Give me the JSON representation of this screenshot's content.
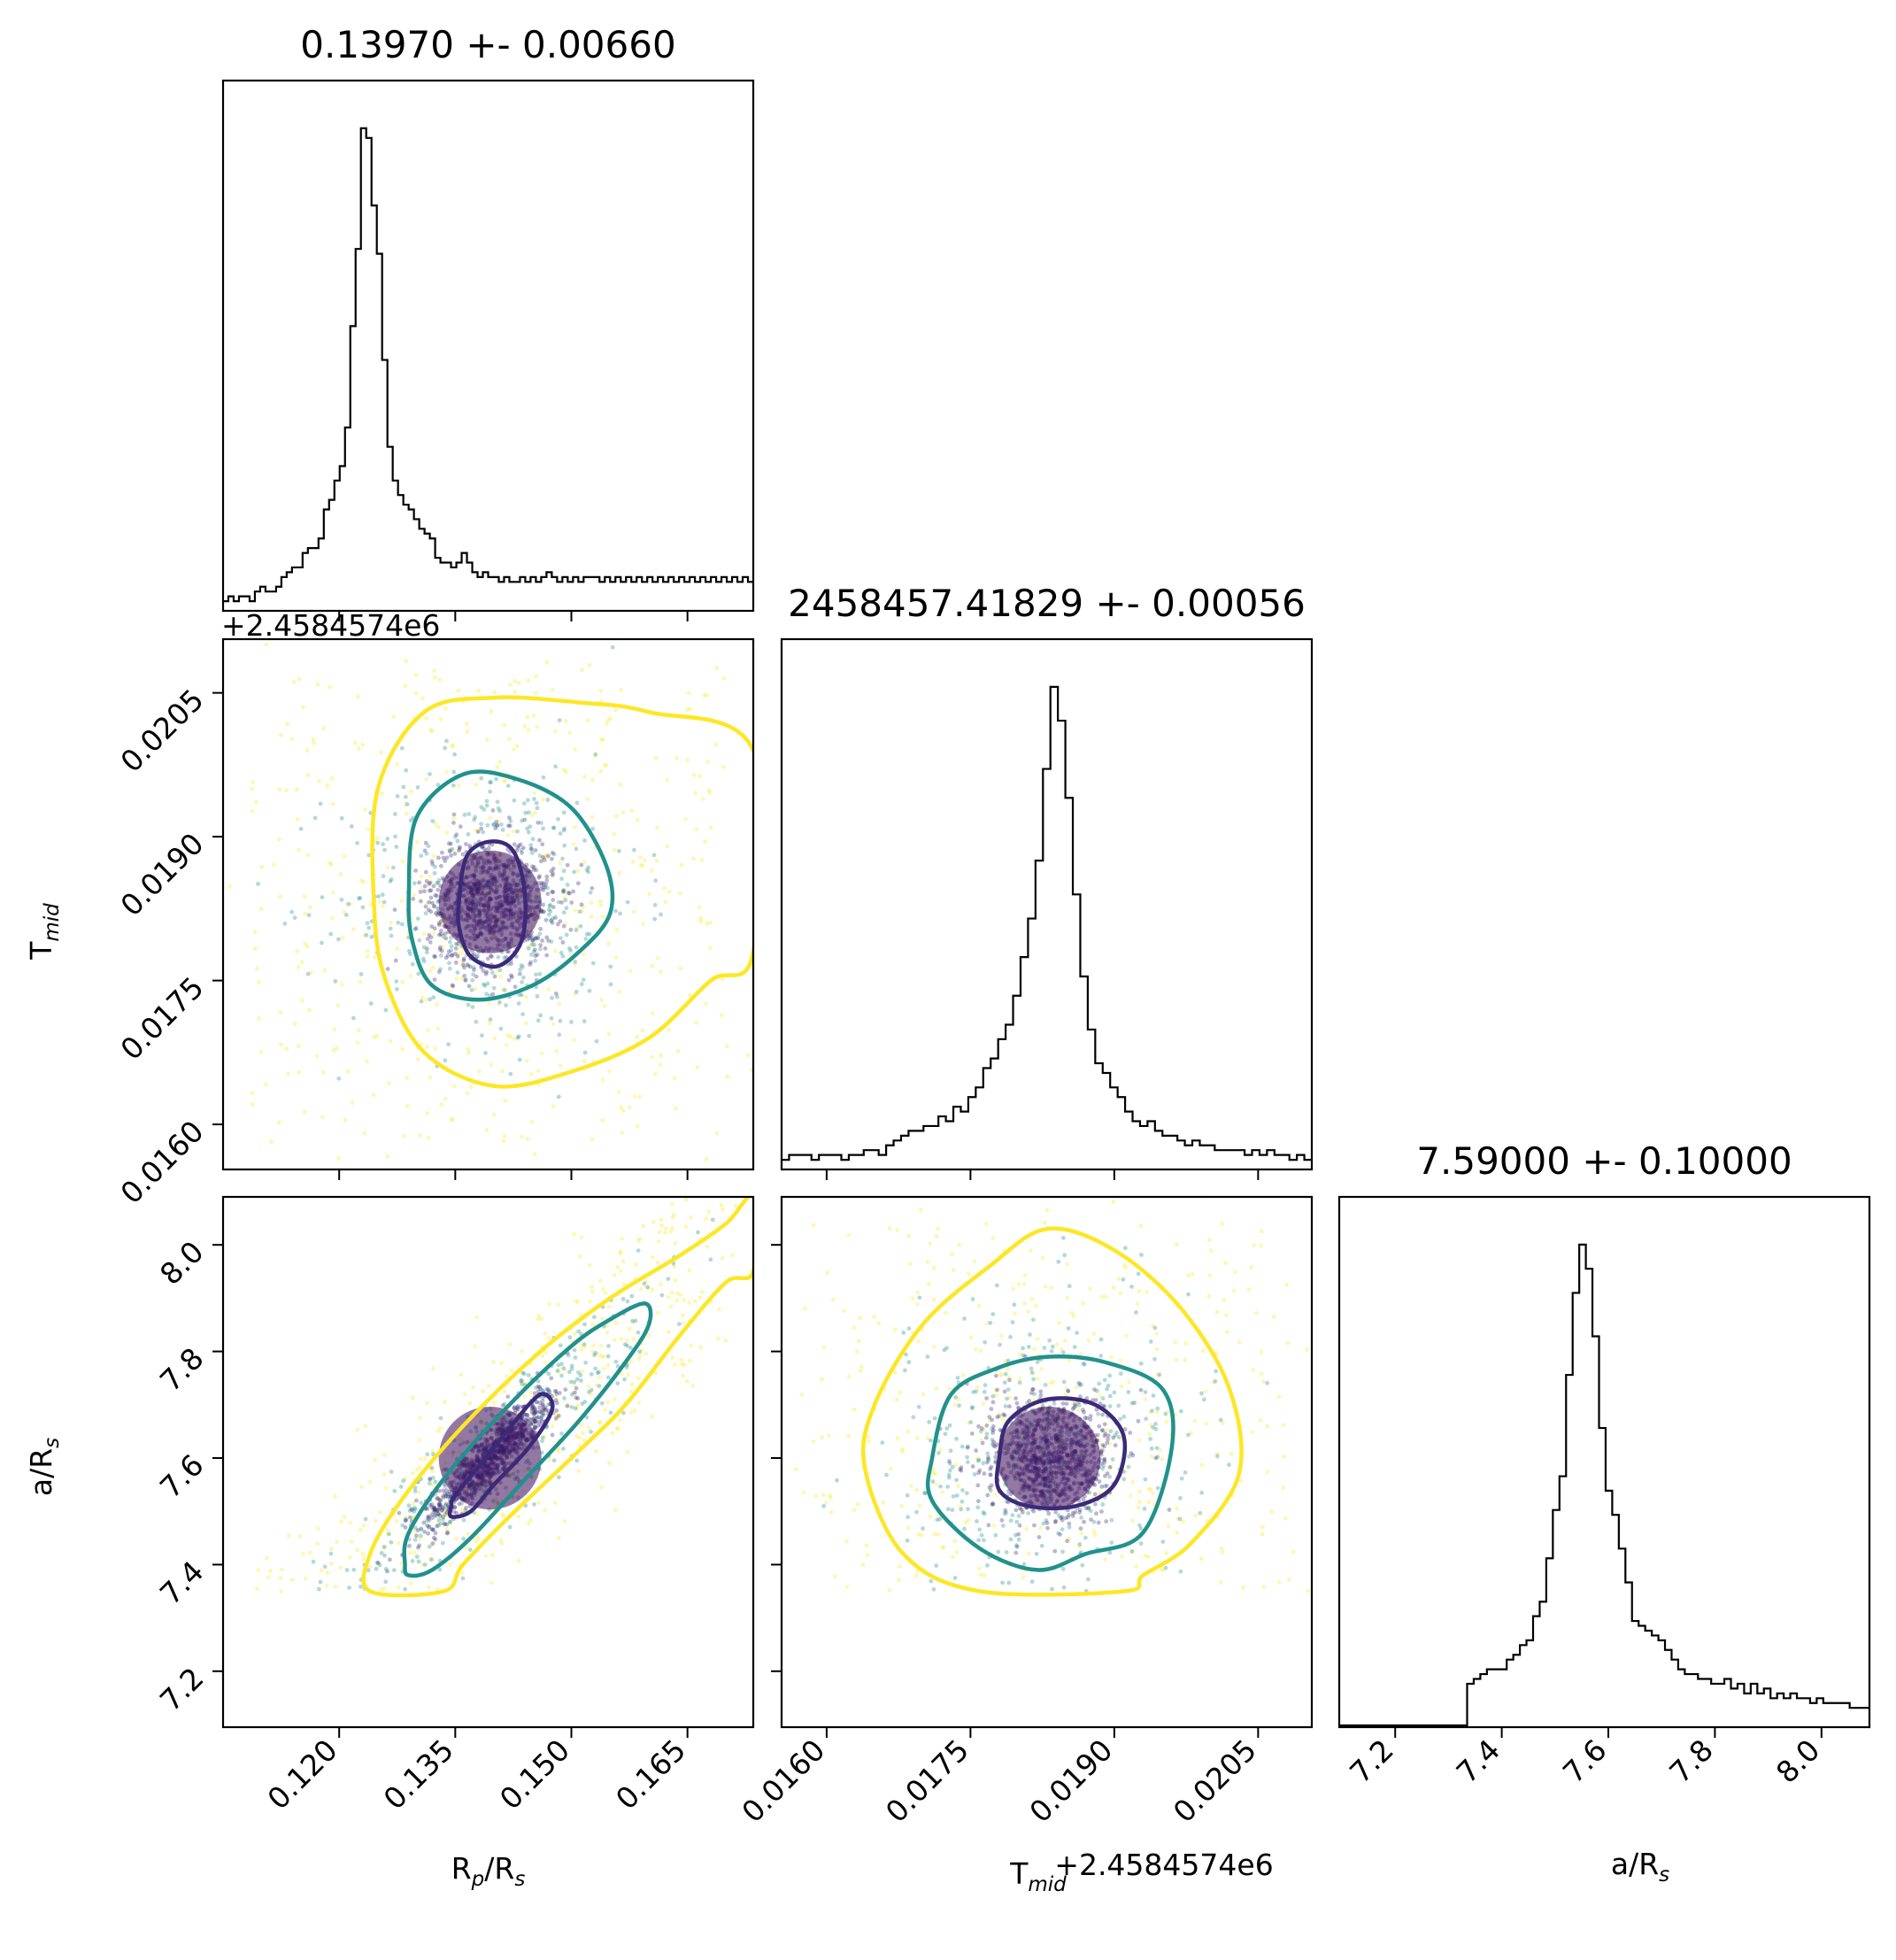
{
  "chart_data": {
    "type": "corner",
    "parameters": [
      {
        "id": "rp",
        "label_main": "R",
        "label_sub": "p",
        "label_tail": "/R",
        "label_tail_sub": "s",
        "title": "0.13970 +- 0.00660",
        "range": [
          0.105,
          0.1735
        ],
        "ticks": [
          0.12,
          0.135,
          0.15,
          0.165
        ],
        "tick_labels": [
          "0.120",
          "0.135",
          "0.150",
          "0.165"
        ],
        "offset_text": "",
        "hist": {
          "bin_width": 0.00137,
          "heights": [
            0.02,
            0.03,
            0.02,
            0.03,
            0.03,
            0.02,
            0.04,
            0.05,
            0.04,
            0.04,
            0.05,
            0.07,
            0.08,
            0.09,
            0.09,
            0.12,
            0.13,
            0.13,
            0.15,
            0.21,
            0.23,
            0.27,
            0.3,
            0.38,
            0.59,
            0.75,
            1.0,
            0.98,
            0.84,
            0.74,
            0.52,
            0.34,
            0.27,
            0.24,
            0.22,
            0.21,
            0.19,
            0.17,
            0.16,
            0.15,
            0.11,
            0.1,
            0.1,
            0.09,
            0.1,
            0.12,
            0.1,
            0.08,
            0.07,
            0.08,
            0.07,
            0.07,
            0.06,
            0.07,
            0.06,
            0.06,
            0.07,
            0.06,
            0.07,
            0.06,
            0.07,
            0.08,
            0.07,
            0.06,
            0.07,
            0.06,
            0.07,
            0.06,
            0.07,
            0.07,
            0.07,
            0.06,
            0.07,
            0.06,
            0.07,
            0.06,
            0.07,
            0.06,
            0.07,
            0.06,
            0.07,
            0.06,
            0.07,
            0.06,
            0.07,
            0.06,
            0.07,
            0.06,
            0.07,
            0.06,
            0.07,
            0.06,
            0.07,
            0.06,
            0.07,
            0.06,
            0.07,
            0.06,
            0.07,
            0.06
          ]
        }
      },
      {
        "id": "tmid",
        "label_main": "T",
        "label_sub": "mid",
        "title": "2458457.41829 +- 0.00056",
        "range": [
          0.01553,
          0.02106
        ],
        "ticks": [
          0.016,
          0.0175,
          0.019,
          0.0205
        ],
        "tick_labels": [
          "0.0160",
          "0.0175",
          "0.0190",
          "0.0205"
        ],
        "offset_text": "+2.4584574e6",
        "hist": {
          "heights": [
            0.02,
            0.03,
            0.03,
            0.03,
            0.02,
            0.03,
            0.03,
            0.03,
            0.02,
            0.03,
            0.03,
            0.04,
            0.04,
            0.03,
            0.05,
            0.06,
            0.07,
            0.08,
            0.08,
            0.09,
            0.09,
            0.11,
            0.1,
            0.13,
            0.12,
            0.15,
            0.17,
            0.21,
            0.23,
            0.27,
            0.3,
            0.36,
            0.44,
            0.52,
            0.64,
            0.83,
            1.0,
            0.93,
            0.77,
            0.57,
            0.4,
            0.29,
            0.22,
            0.2,
            0.17,
            0.15,
            0.12,
            0.1,
            0.09,
            0.1,
            0.08,
            0.07,
            0.07,
            0.06,
            0.05,
            0.06,
            0.05,
            0.05,
            0.04,
            0.04,
            0.04,
            0.04,
            0.03,
            0.04,
            0.03,
            0.04,
            0.03,
            0.03,
            0.02,
            0.03,
            0.02
          ]
        }
      },
      {
        "id": "ars",
        "label_main": "a/R",
        "label_sub": "s",
        "title": "7.59000 +- 0.10000",
        "range": [
          7.095,
          8.09
        ],
        "ticks": [
          7.2,
          7.4,
          7.6,
          7.8,
          8.0
        ],
        "tick_labels": [
          "7.2",
          "7.4",
          "7.6",
          "7.8",
          "8.0"
        ],
        "offset_text": "",
        "hist": {
          "start": 7.335,
          "heights": [
            0.09,
            0.1,
            0.11,
            0.12,
            0.12,
            0.12,
            0.14,
            0.15,
            0.17,
            0.18,
            0.23,
            0.26,
            0.35,
            0.45,
            0.52,
            0.73,
            0.9,
            1.0,
            0.95,
            0.81,
            0.62,
            0.49,
            0.44,
            0.37,
            0.3,
            0.22,
            0.21,
            0.2,
            0.19,
            0.18,
            0.16,
            0.14,
            0.12,
            0.11,
            0.11,
            0.1,
            0.1,
            0.09,
            0.09,
            0.1,
            0.08,
            0.09,
            0.07,
            0.09,
            0.07,
            0.08,
            0.06,
            0.07,
            0.06,
            0.07,
            0.06,
            0.06,
            0.05,
            0.06,
            0.05,
            0.05,
            0.05,
            0.05,
            0.04,
            0.04,
            0.04
          ]
        }
      }
    ],
    "pairs": [
      {
        "x": "rp",
        "y": "tmid",
        "center": [
          0.1395,
          0.01832
        ],
        "contours": [
          {
            "level": "inner",
            "color": "#3b2a78",
            "points": [
              [
                0.1355,
                0.01835
              ],
              [
                0.1365,
                0.0188
              ],
              [
                0.1395,
                0.01895
              ],
              [
                0.1425,
                0.01885
              ],
              [
                0.144,
                0.0184
              ],
              [
                0.1435,
                0.0179
              ],
              [
                0.1405,
                0.01765
              ],
              [
                0.137,
                0.01775
              ],
              [
                0.1355,
                0.01805
              ]
            ]
          },
          {
            "level": "middle",
            "color": "#21918c",
            "points": [
              [
                0.129,
                0.0184
              ],
              [
                0.13,
                0.0192
              ],
              [
                0.136,
                0.01965
              ],
              [
                0.143,
                0.0196
              ],
              [
                0.15,
                0.0193
              ],
              [
                0.1545,
                0.0187
              ],
              [
                0.155,
                0.0182
              ],
              [
                0.151,
                0.0178
              ],
              [
                0.145,
                0.01745
              ],
              [
                0.138,
                0.0173
              ],
              [
                0.132,
                0.01745
              ],
              [
                0.1295,
                0.0179
              ]
            ]
          },
          {
            "level": "outer",
            "color": "#fde725",
            "points": [
              [
                0.1245,
                0.0183
              ],
              [
                0.125,
                0.0195
              ],
              [
                0.131,
                0.0203
              ],
              [
                0.14,
                0.02045
              ],
              [
                0.151,
                0.0204
              ],
              [
                0.16,
                0.0203
              ],
              [
                0.1735,
                0.0199
              ],
              [
                0.1735,
                0.0178
              ],
              [
                0.168,
                0.0175
              ],
              [
                0.16,
                0.0169
              ],
              [
                0.15,
                0.01655
              ],
              [
                0.14,
                0.0164
              ],
              [
                0.131,
                0.01675
              ],
              [
                0.126,
                0.0175
              ]
            ]
          }
        ]
      },
      {
        "x": "rp",
        "y": "ars",
        "center": [
          0.1395,
          7.6
        ],
        "contours": [
          {
            "level": "inner",
            "color": "#3b2a78",
            "points": [
              [
                0.1345,
                7.51
              ],
              [
                0.135,
                7.53
              ],
              [
                0.1395,
                7.61
              ],
              [
                0.1445,
                7.7
              ],
              [
                0.1465,
                7.72
              ],
              [
                0.1475,
                7.69
              ],
              [
                0.1445,
                7.62
              ],
              [
                0.14,
                7.55
              ],
              [
                0.137,
                7.5
              ],
              [
                0.1345,
                7.49
              ]
            ]
          },
          {
            "level": "middle",
            "color": "#21918c",
            "points": [
              [
                0.1285,
                7.4
              ],
              [
                0.129,
                7.46
              ],
              [
                0.134,
                7.57
              ],
              [
                0.142,
                7.7
              ],
              [
                0.15,
                7.81
              ],
              [
                0.155,
                7.86
              ],
              [
                0.1595,
                7.89
              ],
              [
                0.16,
                7.85
              ],
              [
                0.157,
                7.78
              ],
              [
                0.151,
                7.67
              ],
              [
                0.144,
                7.56
              ],
              [
                0.137,
                7.45
              ],
              [
                0.132,
                7.39
              ],
              [
                0.129,
                7.38
              ]
            ]
          },
          {
            "level": "outer",
            "color": "#fde725",
            "points": [
              [
                0.124,
                7.35
              ],
              [
                0.124,
                7.42
              ],
              [
                0.128,
                7.52
              ],
              [
                0.136,
                7.66
              ],
              [
                0.146,
                7.8
              ],
              [
                0.155,
                7.9
              ],
              [
                0.164,
                7.98
              ],
              [
                0.17,
                8.04
              ],
              [
                0.1735,
                8.09
              ],
              [
                0.1735,
                7.95
              ],
              [
                0.17,
                7.93
              ],
              [
                0.164,
                7.83
              ],
              [
                0.157,
                7.7
              ],
              [
                0.15,
                7.6
              ],
              [
                0.142,
                7.49
              ],
              [
                0.136,
                7.4
              ],
              [
                0.1335,
                7.35
              ]
            ]
          }
        ]
      },
      {
        "x": "tmid",
        "y": "ars",
        "center": [
          0.01832,
          7.6
        ],
        "contours": [
          {
            "level": "inner",
            "color": "#3b2a78",
            "points": [
              [
                0.0178,
                7.6
              ],
              [
                0.0179,
                7.67
              ],
              [
                0.0183,
                7.71
              ],
              [
                0.0188,
                7.7
              ],
              [
                0.0191,
                7.64
              ],
              [
                0.019,
                7.55
              ],
              [
                0.0186,
                7.51
              ],
              [
                0.0181,
                7.51
              ],
              [
                0.0178,
                7.54
              ]
            ]
          },
          {
            "level": "middle",
            "color": "#21918c",
            "points": [
              [
                0.0171,
                7.6
              ],
              [
                0.0173,
                7.72
              ],
              [
                0.0178,
                7.77
              ],
              [
                0.0183,
                7.79
              ],
              [
                0.0189,
                7.78
              ],
              [
                0.0195,
                7.73
              ],
              [
                0.0196,
                7.62
              ],
              [
                0.0193,
                7.46
              ],
              [
                0.0187,
                7.42
              ],
              [
                0.0182,
                7.39
              ],
              [
                0.0176,
                7.43
              ],
              [
                0.0171,
                7.52
              ]
            ]
          },
          {
            "level": "outer",
            "color": "#fde725",
            "points": [
              [
                0.0176,
                7.35
              ],
              [
                0.0168,
                7.42
              ],
              [
                0.0164,
                7.58
              ],
              [
                0.0165,
                7.7
              ],
              [
                0.017,
                7.85
              ],
              [
                0.0177,
                7.96
              ],
              [
                0.0183,
                8.03
              ],
              [
                0.019,
                7.99
              ],
              [
                0.0197,
                7.88
              ],
              [
                0.0202,
                7.73
              ],
              [
                0.0203,
                7.57
              ],
              [
                0.0198,
                7.44
              ],
              [
                0.0193,
                7.38
              ],
              [
                0.0191,
                7.35
              ]
            ]
          }
        ]
      }
    ],
    "grid": false,
    "legend": "none"
  }
}
